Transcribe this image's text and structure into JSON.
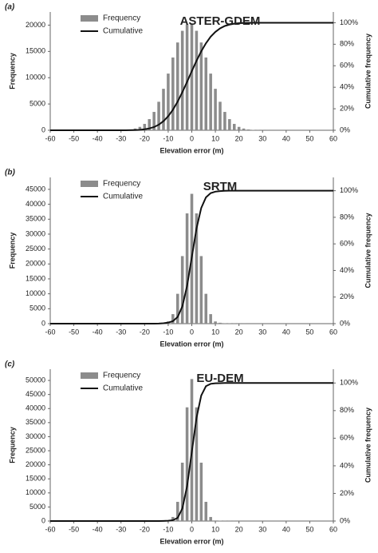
{
  "chart_data": [
    {
      "type": "bar",
      "panel_label": "(a)",
      "title": "ASTER-GDEM",
      "xlabel": "Elevation error (m)",
      "ylabel": "Frequency",
      "y2label": "Cumulative frequency",
      "legend": "upper left",
      "grid": false,
      "x": [
        -60,
        -58,
        -56,
        -54,
        -52,
        -50,
        -48,
        -46,
        -44,
        -42,
        -40,
        -38,
        -36,
        -34,
        -32,
        -30,
        -28,
        -26,
        -24,
        -22,
        -20,
        -18,
        -16,
        -14,
        -12,
        -10,
        -8,
        -6,
        -4,
        -2,
        0,
        2,
        4,
        6,
        8,
        10,
        12,
        14,
        16,
        18,
        20,
        22,
        24,
        26,
        28,
        30,
        32,
        34,
        36,
        38,
        40,
        42,
        44,
        46,
        48,
        50,
        52,
        54,
        56,
        58,
        60
      ],
      "xlim": [
        -60,
        60
      ],
      "xticks": [
        -60,
        -50,
        -40,
        -30,
        -20,
        -10,
        0,
        10,
        20,
        30,
        40,
        50,
        60
      ],
      "ylim": [
        0,
        22500
      ],
      "yticks": [
        0,
        5000,
        10000,
        15000,
        20000
      ],
      "y2lim": [
        0,
        110
      ],
      "y2ticks": [
        {
          "value": 0,
          "label": "0%"
        },
        {
          "value": 20,
          "label": "20%"
        },
        {
          "value": 40,
          "label": "40%"
        },
        {
          "value": 60,
          "label": "60%"
        },
        {
          "value": 80,
          "label": "80%"
        },
        {
          "value": 100,
          "label": "100%"
        }
      ],
      "series": [
        {
          "name": "Frequency",
          "type": "bar",
          "color": "#8c8c8c",
          "values": [
            0,
            0,
            0,
            0,
            0,
            0,
            0,
            0,
            0,
            0,
            0,
            0,
            0,
            4,
            11,
            28,
            68,
            154,
            326,
            645,
            1210,
            2120,
            3490,
            5420,
            7890,
            10780,
            13840,
            16700,
            18920,
            20140,
            20140,
            18920,
            16700,
            13840,
            10780,
            7890,
            5420,
            3490,
            2120,
            1210,
            645,
            326,
            154,
            68,
            28,
            11,
            4,
            0,
            0,
            0,
            0,
            0,
            0,
            0,
            0,
            0,
            0,
            0,
            0,
            0,
            0
          ]
        },
        {
          "name": "Cumulative",
          "type": "line",
          "axis": "y2",
          "color": "#111111",
          "values": [
            0,
            0,
            0,
            0,
            0,
            0,
            0,
            0,
            0,
            0,
            0,
            0,
            0,
            0,
            0,
            0,
            0,
            0.1,
            0.2,
            0.4,
            0.9,
            1.7,
            3.0,
            5.2,
            8.5,
            13.0,
            19.1,
            26.6,
            35.4,
            45.0,
            55.0,
            64.6,
            73.4,
            80.9,
            87.0,
            91.5,
            94.8,
            97.0,
            98.3,
            99.1,
            99.6,
            99.8,
            99.9,
            100,
            100,
            100,
            100,
            100,
            100,
            100,
            100,
            100,
            100,
            100,
            100,
            100,
            100,
            100,
            100,
            100,
            100
          ]
        }
      ]
    },
    {
      "type": "bar",
      "panel_label": "(b)",
      "title": "SRTM",
      "xlabel": "Elevation error (m)",
      "ylabel": "Frequency",
      "y2label": "Cumulative frequency",
      "legend": "upper left",
      "grid": false,
      "x": [
        -60,
        -58,
        -56,
        -54,
        -52,
        -50,
        -48,
        -46,
        -44,
        -42,
        -40,
        -38,
        -36,
        -34,
        -32,
        -30,
        -28,
        -26,
        -24,
        -22,
        -20,
        -18,
        -16,
        -14,
        -12,
        -10,
        -8,
        -6,
        -4,
        -2,
        0,
        2,
        4,
        6,
        8,
        10,
        12,
        14,
        16,
        18,
        20,
        22,
        24,
        26,
        28,
        30,
        32,
        34,
        36,
        38,
        40,
        42,
        44,
        46,
        48,
        50,
        52,
        54,
        56,
        58,
        60
      ],
      "xlim": [
        -60,
        60
      ],
      "xticks": [
        -60,
        -50,
        -40,
        -30,
        -20,
        -10,
        0,
        10,
        20,
        30,
        40,
        50,
        60
      ],
      "ylim": [
        0,
        49000
      ],
      "yticks": [
        0,
        5000,
        10000,
        15000,
        20000,
        25000,
        30000,
        35000,
        40000,
        45000
      ],
      "y2lim": [
        0,
        110
      ],
      "y2ticks": [
        {
          "value": 0,
          "label": "0%"
        },
        {
          "value": 20,
          "label": "20%"
        },
        {
          "value": 40,
          "label": "40%"
        },
        {
          "value": 60,
          "label": "60%"
        },
        {
          "value": 80,
          "label": "80%"
        },
        {
          "value": 100,
          "label": "100%"
        }
      ],
      "series": [
        {
          "name": "Frequency",
          "type": "bar",
          "color": "#8c8c8c",
          "values": [
            0,
            0,
            0,
            0,
            0,
            0,
            0,
            0,
            0,
            0,
            0,
            0,
            0,
            0,
            0,
            0,
            0,
            0,
            0,
            10,
            20,
            40,
            80,
            150,
            300,
            735,
            3190,
            10000,
            22640,
            36940,
            43500,
            36940,
            22640,
            10000,
            3190,
            735,
            300,
            150,
            80,
            40,
            20,
            10,
            0,
            0,
            0,
            0,
            0,
            0,
            0,
            0,
            0,
            0,
            0,
            0,
            0,
            0,
            0,
            0,
            0,
            0,
            0
          ]
        },
        {
          "name": "Cumulative",
          "type": "line",
          "axis": "y2",
          "color": "#111111",
          "values": [
            0,
            0,
            0,
            0,
            0,
            0,
            0,
            0,
            0,
            0,
            0,
            0,
            0,
            0,
            0,
            0,
            0,
            0,
            0,
            0,
            0,
            0,
            0,
            0.1,
            0.3,
            0.8,
            1.9,
            5,
            13,
            28.4,
            50,
            71.6,
            87,
            95,
            98.2,
            99.3,
            99.7,
            99.9,
            100,
            100,
            100,
            100,
            100,
            100,
            100,
            100,
            100,
            100,
            100,
            100,
            100,
            100,
            100,
            100,
            100,
            100,
            100,
            100,
            100,
            100,
            100
          ]
        }
      ]
    },
    {
      "type": "bar",
      "panel_label": "(c)",
      "title": "EU-DEM",
      "xlabel": "Elevation error (m)",
      "ylabel": "Frequency",
      "y2label": "Cumulative frequency",
      "legend": "upper left",
      "grid": false,
      "x": [
        -60,
        -58,
        -56,
        -54,
        -52,
        -50,
        -48,
        -46,
        -44,
        -42,
        -40,
        -38,
        -36,
        -34,
        -32,
        -30,
        -28,
        -26,
        -24,
        -22,
        -20,
        -18,
        -16,
        -14,
        -12,
        -10,
        -8,
        -6,
        -4,
        -2,
        0,
        2,
        4,
        6,
        8,
        10,
        12,
        14,
        16,
        18,
        20,
        22,
        24,
        26,
        28,
        30,
        32,
        34,
        36,
        38,
        40,
        42,
        44,
        46,
        48,
        50,
        52,
        54,
        56,
        58,
        60
      ],
      "xlim": [
        -60,
        60
      ],
      "xticks": [
        -60,
        -50,
        -40,
        -30,
        -20,
        -10,
        0,
        10,
        20,
        30,
        40,
        50,
        60
      ],
      "ylim": [
        0,
        54000
      ],
      "yticks": [
        0,
        5000,
        10000,
        15000,
        20000,
        25000,
        30000,
        35000,
        40000,
        45000,
        50000
      ],
      "y2lim": [
        0,
        110
      ],
      "y2ticks": [
        {
          "value": 0,
          "label": "0%"
        },
        {
          "value": 20,
          "label": "20%"
        },
        {
          "value": 40,
          "label": "40%"
        },
        {
          "value": 60,
          "label": "60%"
        },
        {
          "value": 80,
          "label": "80%"
        },
        {
          "value": 100,
          "label": "100%"
        }
      ],
      "series": [
        {
          "name": "Frequency",
          "type": "bar",
          "color": "#8c8c8c",
          "values": [
            0,
            0,
            0,
            0,
            0,
            0,
            0,
            0,
            0,
            0,
            0,
            0,
            0,
            0,
            0,
            0,
            0,
            0,
            0,
            0,
            8,
            15,
            30,
            60,
            120,
            195,
            1440,
            6830,
            20760,
            40440,
            50500,
            40440,
            20760,
            6830,
            1440,
            195,
            120,
            60,
            30,
            15,
            8,
            0,
            0,
            0,
            0,
            0,
            0,
            0,
            0,
            0,
            0,
            0,
            0,
            0,
            0,
            0,
            0,
            0,
            0,
            0,
            0
          ]
        },
        {
          "name": "Cumulative",
          "type": "line",
          "axis": "y2",
          "color": "#111111",
          "values": [
            0,
            0,
            0,
            0,
            0,
            0,
            0,
            0,
            0,
            0,
            0,
            0,
            0,
            0,
            0,
            0,
            0,
            0,
            0,
            0,
            0,
            0,
            0,
            0,
            0.1,
            0.2,
            0.6,
            2.3,
            9.1,
            25.2,
            50,
            74.8,
            90.9,
            97.7,
            99.4,
            99.8,
            99.9,
            100,
            100,
            100,
            100,
            100,
            100,
            100,
            100,
            100,
            100,
            100,
            100,
            100,
            100,
            100,
            100,
            100,
            100,
            100,
            100,
            100,
            100,
            100,
            100
          ]
        }
      ]
    }
  ]
}
